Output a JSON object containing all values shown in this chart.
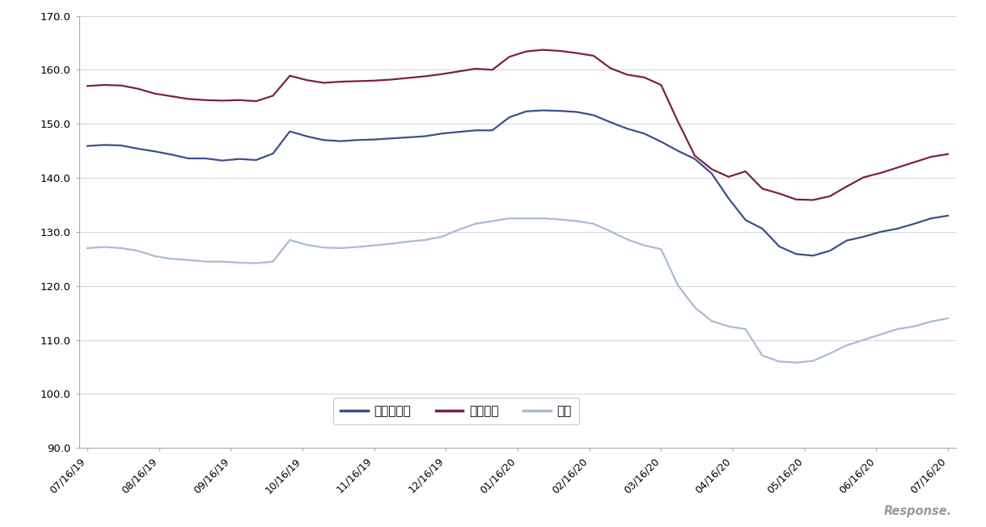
{
  "ylim": [
    90.0,
    170.0
  ],
  "yticks": [
    90.0,
    100.0,
    110.0,
    120.0,
    130.0,
    140.0,
    150.0,
    160.0,
    170.0
  ],
  "xtick_labels": [
    "07/16/19",
    "08/16/19",
    "09/16/19",
    "10/16/19",
    "11/16/19",
    "12/16/19",
    "01/16/20",
    "02/16/20",
    "03/16/20",
    "04/16/20",
    "05/16/20",
    "06/16/20",
    "07/16/20"
  ],
  "regular_color": "#3D4F8A",
  "haioku_color": "#7B1F45",
  "keiyuu_color": "#AABBD4",
  "line_width": 1.6,
  "legend_labels": [
    "レギュラー",
    "ハイオク",
    "軽油"
  ],
  "regular": [
    145.9,
    146.1,
    146.0,
    145.4,
    144.9,
    144.3,
    143.6,
    143.6,
    143.2,
    143.5,
    143.3,
    144.5,
    148.6,
    147.7,
    147.0,
    146.8,
    147.0,
    147.1,
    147.3,
    147.5,
    147.7,
    148.2,
    148.5,
    148.8,
    148.8,
    151.2,
    152.3,
    152.5,
    152.4,
    152.2,
    151.6,
    150.3,
    149.1,
    148.2,
    146.7,
    145.0,
    143.5,
    140.8,
    136.2,
    132.2,
    130.6,
    127.3,
    125.9,
    125.6,
    126.5,
    128.4,
    129.1,
    130.0,
    130.6,
    131.5,
    132.5,
    133.0
  ],
  "haioku": [
    157.0,
    157.2,
    157.1,
    156.5,
    155.6,
    155.1,
    154.6,
    154.4,
    154.3,
    154.4,
    154.2,
    155.2,
    158.9,
    158.1,
    157.6,
    157.8,
    157.9,
    158.0,
    158.2,
    158.5,
    158.8,
    159.2,
    159.7,
    160.2,
    160.0,
    162.4,
    163.4,
    163.7,
    163.5,
    163.1,
    162.6,
    160.3,
    159.1,
    158.6,
    157.2,
    150.4,
    144.1,
    141.6,
    140.2,
    141.2,
    138.0,
    137.1,
    136.0,
    135.9,
    136.6,
    138.4,
    140.1,
    140.9,
    141.9,
    142.9,
    143.9,
    144.4
  ],
  "keiyuu": [
    127.0,
    127.2,
    127.0,
    126.5,
    125.5,
    125.0,
    124.8,
    124.5,
    124.5,
    124.3,
    124.2,
    124.5,
    128.5,
    127.6,
    127.1,
    127.0,
    127.2,
    127.5,
    127.8,
    128.2,
    128.5,
    129.1,
    130.4,
    131.5,
    132.0,
    132.5,
    132.5,
    132.5,
    132.3,
    132.0,
    131.5,
    130.1,
    128.6,
    127.5,
    126.8,
    120.1,
    116.0,
    113.5,
    112.5,
    112.0,
    107.1,
    106.0,
    105.8,
    106.1,
    107.5,
    109.0,
    110.0,
    111.0,
    112.0,
    112.5,
    113.4,
    114.0
  ]
}
